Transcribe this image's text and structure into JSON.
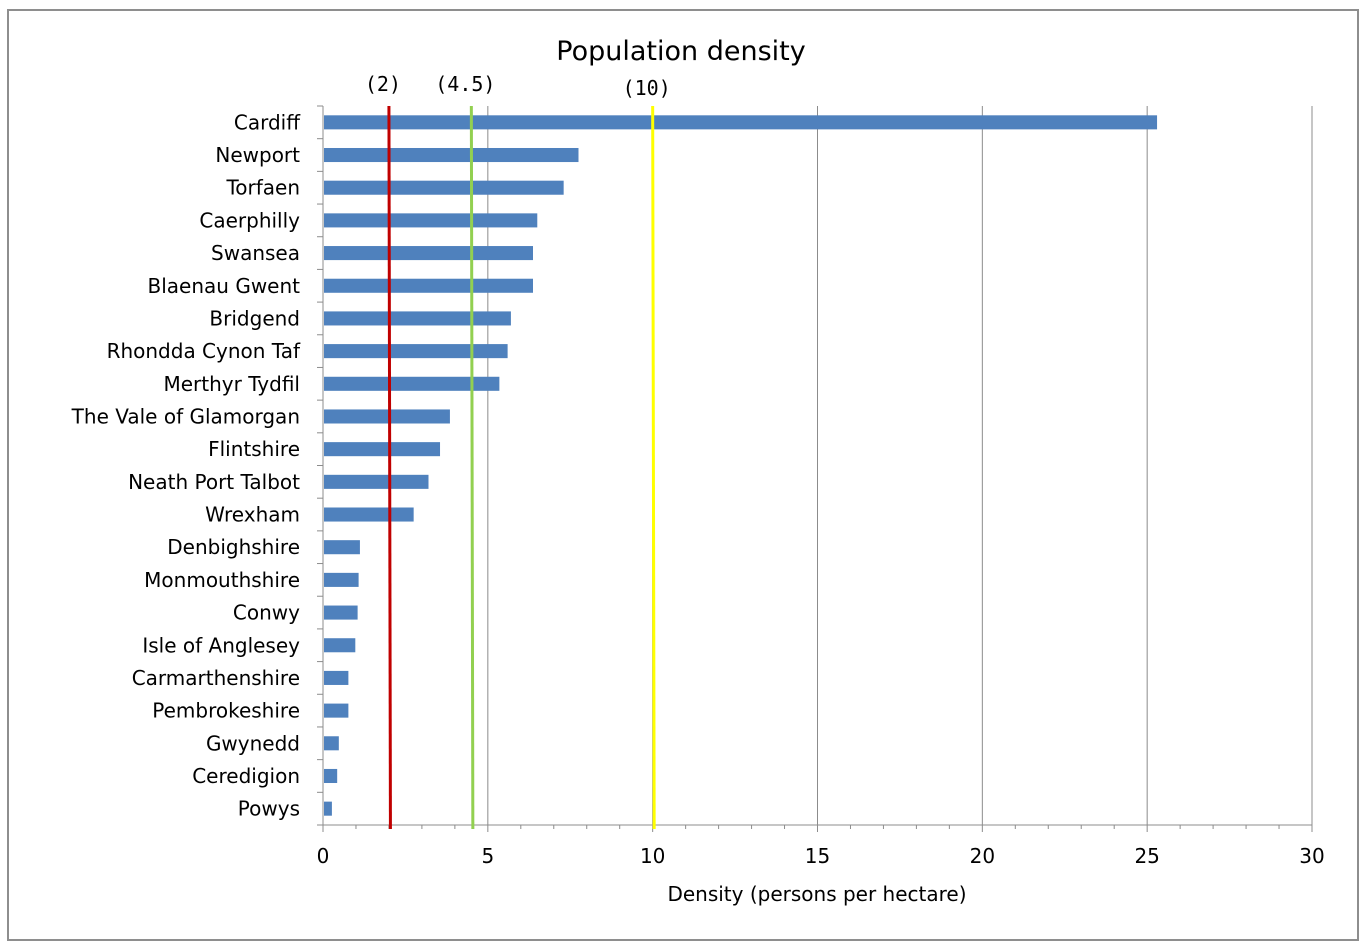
{
  "chart_data": {
    "type": "bar",
    "orientation": "horizontal",
    "title": "Population density",
    "xlabel": "Density (persons per hectare)",
    "ylabel": "",
    "xlim": [
      0,
      30
    ],
    "xticks": [
      0,
      5,
      10,
      15,
      20,
      25,
      30
    ],
    "grid": true,
    "categories": [
      "Cardiff",
      "Newport",
      "Torfaen",
      "Caerphilly",
      "Swansea",
      "Blaenau Gwent",
      "Bridgend",
      "Rhondda Cynon Taf",
      "Merthyr Tydfil",
      "The Vale of Glamorgan",
      "Flintshire",
      "Neath Port Talbot",
      "Wrexham",
      "Denbighshire",
      "Monmouthshire",
      "Conwy",
      "Isle of Anglesey",
      "Carmarthenshire",
      "Pembrokeshire",
      "Gwynedd",
      "Ceredigion",
      "Powys"
    ],
    "values": [
      25.3,
      7.75,
      7.3,
      6.5,
      6.37,
      6.37,
      5.7,
      5.6,
      5.35,
      3.85,
      3.55,
      3.2,
      2.75,
      1.12,
      1.08,
      1.05,
      0.98,
      0.77,
      0.77,
      0.48,
      0.43,
      0.27
    ],
    "bar_color": "#4f81bd",
    "reference_lines": [
      {
        "value": 2,
        "label": "(2)",
        "color": "#c00000"
      },
      {
        "value": 4.5,
        "label": "(4.5)",
        "color": "#92d050"
      },
      {
        "value": 10,
        "label": "(10)",
        "color": "#ffff00"
      }
    ]
  }
}
